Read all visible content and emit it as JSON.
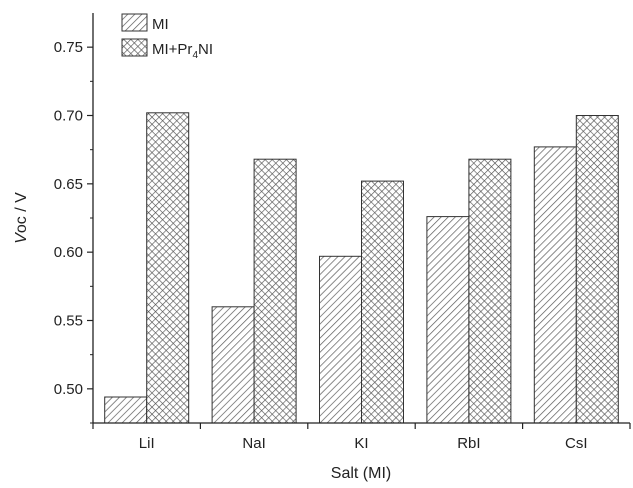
{
  "chart_data": {
    "type": "bar",
    "categories": [
      "LiI",
      "NaI",
      "KI",
      "RbI",
      "CsI"
    ],
    "series": [
      {
        "name": "MI",
        "values": [
          0.494,
          0.56,
          0.597,
          0.626,
          0.677
        ],
        "pattern": "diagonal-hatch",
        "color": "#555555"
      },
      {
        "name": "MI+Pr4NI",
        "values": [
          0.702,
          0.668,
          0.652,
          0.668,
          0.7
        ],
        "pattern": "cross-hatch",
        "color": "#555555"
      }
    ],
    "legend": {
      "position": "top-left",
      "entries": [
        {
          "label": "MI"
        },
        {
          "label": "MI+Pr",
          "subscript": "4",
          "suffix": "NI"
        }
      ]
    },
    "xlabel": "Salt (MI)",
    "ylabel": {
      "italic": "V",
      "rest": "oc / V"
    },
    "ylim": [
      0.475,
      0.775
    ],
    "yticks": [
      "0.50",
      "0.55",
      "0.60",
      "0.65",
      "0.70",
      "0.75"
    ],
    "ytick_values": [
      0.5,
      0.55,
      0.6,
      0.65,
      0.7,
      0.75
    ],
    "grid": false
  }
}
